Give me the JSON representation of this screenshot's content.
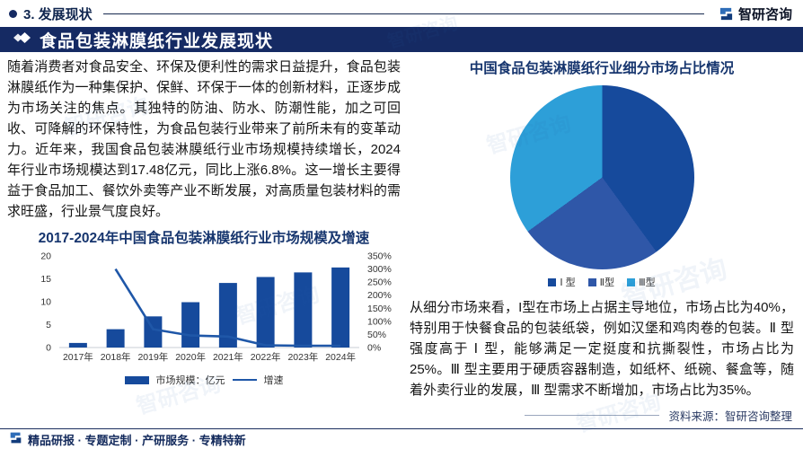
{
  "theme": {
    "navy": "#152a63",
    "title_blue": "#16356e",
    "bar_blue": "#164a9c",
    "line_blue": "#1f57a8",
    "light_blue": "#2d9fd8"
  },
  "header": {
    "section": "3. 发展现状",
    "logo_text": "智研咨询"
  },
  "banner": {
    "title": "食品包装淋膜纸行业发展现状"
  },
  "left": {
    "paragraph": "随着消费者对食品安全、环保及便利性的需求日益提升，食品包装淋膜纸作为一种集保护、保鲜、环保于一体的创新材料，正逐步成为市场关注的焦点。其独特的防油、防水、防潮性能，加之可回收、可降解的环保特性，为食品包装行业带来了前所未有的变革动力。近年来，我国食品包装淋膜纸行业市场规模持续增长，2024年行业市场规模达到17.48亿元，同比上涨6.8%。这一增长主要得益于食品加工、餐饮外卖等产业不断发展，对高质量包装材料的需求旺盛，行业景气度良好。"
  },
  "right": {
    "paragraph": "从细分市场来看，I型在市场上占据主导地位，市场占比为40%，特别用于快餐食品的包装纸袋，例如汉堡和鸡肉卷的包装。Ⅱ 型强度高于 Ⅰ 型，能够满足一定挺度和抗撕裂性，市场占比为25%。Ⅲ 型主要用于硬质容器制造，如纸杯、纸碗、餐盒等，随着外卖行业的发展，Ⅲ 型需求不断增加，市场占比为35%。",
    "source": "资料来源：智研咨询整理"
  },
  "footer": {
    "text": "精品研报 · 专题定制 · 产研服务 · 专精特新"
  },
  "watermark": {
    "text": "智研咨询"
  },
  "chart_data": [
    {
      "type": "bar",
      "title": "2017-2024年中国食品包装淋膜纸行业市场规模及增速",
      "categories": [
        "2017年",
        "2018年",
        "2019年",
        "2020年",
        "2021年",
        "2022年",
        "2023年",
        "2024年"
      ],
      "series": [
        {
          "name": "市场规模：亿元",
          "type": "bar",
          "axis": "left",
          "color": "#164a9c",
          "values": [
            1.0,
            4.0,
            6.8,
            9.9,
            14.1,
            15.4,
            16.4,
            17.48
          ]
        },
        {
          "name": "增速",
          "type": "line",
          "axis": "right",
          "color": "#1f57a8",
          "values": [
            null,
            300,
            70,
            46,
            42,
            8.5,
            7,
            6.8
          ]
        }
      ],
      "left_axis": {
        "min": 0,
        "max": 20,
        "ticks": [
          0,
          5,
          10,
          15,
          20
        ]
      },
      "right_axis": {
        "min": 0,
        "max": 350,
        "ticks": [
          0,
          50,
          100,
          150,
          200,
          250,
          300,
          350
        ],
        "suffix": "%"
      },
      "grid": false,
      "legend_position": "bottom"
    },
    {
      "type": "pie",
      "title": "中国食品包装淋膜纸行业细分市场占比情况",
      "labels": [
        "Ⅰ 型",
        "Ⅱ型",
        "Ⅲ型"
      ],
      "values": [
        40,
        25,
        35
      ],
      "colors": [
        "#164a9c",
        "#2f57a8",
        "#2d9fd8"
      ],
      "start_angle": 0,
      "direction": "clockwise",
      "legend_position": "bottom"
    }
  ]
}
